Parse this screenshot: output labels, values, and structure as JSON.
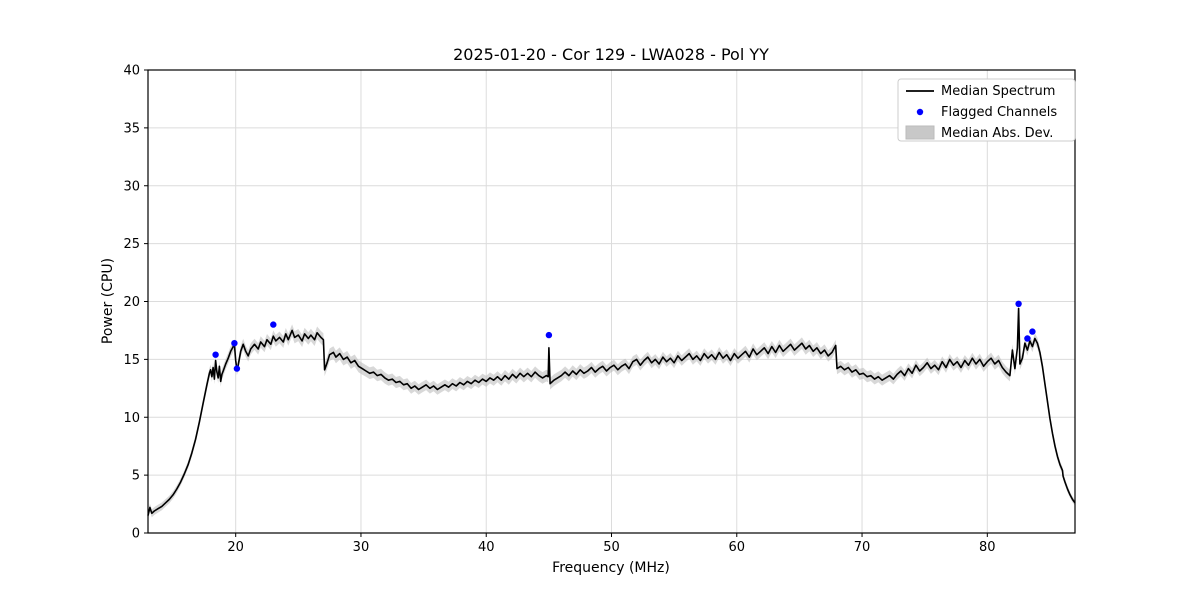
{
  "figure": {
    "title": "2025-01-20 - Cor 129 - LWA028 - Pol YY"
  },
  "chart_data": {
    "type": "line",
    "title": "2025-01-20 - Cor 129 - LWA028 - Pol YY",
    "xlabel": "Frequency (MHz)",
    "ylabel": "Power (CPU)",
    "xlim": [
      13,
      87
    ],
    "ylim": [
      0,
      40
    ],
    "xticks": [
      20,
      30,
      40,
      50,
      60,
      70,
      80
    ],
    "yticks": [
      0,
      5,
      10,
      15,
      20,
      25,
      30,
      35,
      40
    ],
    "grid": true,
    "legend": {
      "position": "upper right",
      "entries": [
        {
          "label": "Median Spectrum",
          "type": "line",
          "color": "#000000"
        },
        {
          "label": "Flagged Channels",
          "type": "marker",
          "color": "#0000ff"
        },
        {
          "label": "Median Abs. Dev.",
          "type": "patch",
          "color": "#c8c8c8"
        }
      ]
    },
    "series": [
      {
        "name": "Median Spectrum",
        "type": "line",
        "color": "#000000",
        "points": [
          [
            13.0,
            1.5
          ],
          [
            13.15,
            2.2
          ],
          [
            13.3,
            1.7
          ],
          [
            13.5,
            1.9
          ],
          [
            13.8,
            2.1
          ],
          [
            14.1,
            2.3
          ],
          [
            14.4,
            2.6
          ],
          [
            14.7,
            2.9
          ],
          [
            15.0,
            3.3
          ],
          [
            15.3,
            3.8
          ],
          [
            15.6,
            4.4
          ],
          [
            15.9,
            5.1
          ],
          [
            16.2,
            5.9
          ],
          [
            16.5,
            6.9
          ],
          [
            16.8,
            8.1
          ],
          [
            17.1,
            9.6
          ],
          [
            17.4,
            11.2
          ],
          [
            17.7,
            12.8
          ],
          [
            17.9,
            13.8
          ],
          [
            18.0,
            14.1
          ],
          [
            18.1,
            13.5
          ],
          [
            18.2,
            14.3
          ],
          [
            18.3,
            13.3
          ],
          [
            18.4,
            14.9
          ],
          [
            18.5,
            13.9
          ],
          [
            18.6,
            13.4
          ],
          [
            18.7,
            14.4
          ],
          [
            18.8,
            13.1
          ],
          [
            18.9,
            13.7
          ],
          [
            19.0,
            14.0
          ],
          [
            19.2,
            14.6
          ],
          [
            19.4,
            15.1
          ],
          [
            19.6,
            15.7
          ],
          [
            19.8,
            16.1
          ],
          [
            19.9,
            16.3
          ],
          [
            20.0,
            14.9
          ],
          [
            20.1,
            14.1
          ],
          [
            20.2,
            14.5
          ],
          [
            20.4,
            15.7
          ],
          [
            20.6,
            16.3
          ],
          [
            20.8,
            15.7
          ],
          [
            21.0,
            15.3
          ],
          [
            21.2,
            15.9
          ],
          [
            21.5,
            16.3
          ],
          [
            21.8,
            15.9
          ],
          [
            22.0,
            16.5
          ],
          [
            22.3,
            16.1
          ],
          [
            22.5,
            16.7
          ],
          [
            22.8,
            16.3
          ],
          [
            23.0,
            17.0
          ],
          [
            23.2,
            16.6
          ],
          [
            23.5,
            16.9
          ],
          [
            23.8,
            16.5
          ],
          [
            24.0,
            17.2
          ],
          [
            24.2,
            16.7
          ],
          [
            24.5,
            17.5
          ],
          [
            24.7,
            16.9
          ],
          [
            25.0,
            17.1
          ],
          [
            25.3,
            16.6
          ],
          [
            25.5,
            17.2
          ],
          [
            25.8,
            16.8
          ],
          [
            26.0,
            17.1
          ],
          [
            26.3,
            16.7
          ],
          [
            26.5,
            17.3
          ],
          [
            26.8,
            16.9
          ],
          [
            27.0,
            16.7
          ],
          [
            27.1,
            14.1
          ],
          [
            27.3,
            14.7
          ],
          [
            27.5,
            15.4
          ],
          [
            27.8,
            15.6
          ],
          [
            28.0,
            15.2
          ],
          [
            28.3,
            15.5
          ],
          [
            28.6,
            15.0
          ],
          [
            28.9,
            15.2
          ],
          [
            29.2,
            14.7
          ],
          [
            29.5,
            14.9
          ],
          [
            29.8,
            14.4
          ],
          [
            30.1,
            14.2
          ],
          [
            30.4,
            14.0
          ],
          [
            30.7,
            13.8
          ],
          [
            31.0,
            13.9
          ],
          [
            31.3,
            13.6
          ],
          [
            31.6,
            13.7
          ],
          [
            31.9,
            13.4
          ],
          [
            32.2,
            13.2
          ],
          [
            32.5,
            13.3
          ],
          [
            32.8,
            13.0
          ],
          [
            33.1,
            13.1
          ],
          [
            33.4,
            12.8
          ],
          [
            33.7,
            12.9
          ],
          [
            34.0,
            12.5
          ],
          [
            34.3,
            12.7
          ],
          [
            34.6,
            12.4
          ],
          [
            34.9,
            12.6
          ],
          [
            35.2,
            12.8
          ],
          [
            35.5,
            12.5
          ],
          [
            35.8,
            12.7
          ],
          [
            36.1,
            12.4
          ],
          [
            36.4,
            12.6
          ],
          [
            36.7,
            12.8
          ],
          [
            37.0,
            12.6
          ],
          [
            37.3,
            12.9
          ],
          [
            37.6,
            12.7
          ],
          [
            37.9,
            13.0
          ],
          [
            38.2,
            12.8
          ],
          [
            38.5,
            13.1
          ],
          [
            38.8,
            12.9
          ],
          [
            39.1,
            13.2
          ],
          [
            39.4,
            13.0
          ],
          [
            39.7,
            13.3
          ],
          [
            40.0,
            13.1
          ],
          [
            40.3,
            13.4
          ],
          [
            40.6,
            13.2
          ],
          [
            40.9,
            13.5
          ],
          [
            41.2,
            13.2
          ],
          [
            41.5,
            13.6
          ],
          [
            41.8,
            13.3
          ],
          [
            42.1,
            13.7
          ],
          [
            42.4,
            13.4
          ],
          [
            42.7,
            13.8
          ],
          [
            43.0,
            13.5
          ],
          [
            43.3,
            13.8
          ],
          [
            43.6,
            13.5
          ],
          [
            43.9,
            13.9
          ],
          [
            44.2,
            13.6
          ],
          [
            44.5,
            13.4
          ],
          [
            44.8,
            13.6
          ],
          [
            44.95,
            13.5
          ],
          [
            45.0,
            16.0
          ],
          [
            45.1,
            12.9
          ],
          [
            45.4,
            13.2
          ],
          [
            45.7,
            13.4
          ],
          [
            46.0,
            13.6
          ],
          [
            46.3,
            13.9
          ],
          [
            46.6,
            13.6
          ],
          [
            46.9,
            14.0
          ],
          [
            47.2,
            13.7
          ],
          [
            47.5,
            14.1
          ],
          [
            47.8,
            13.8
          ],
          [
            48.1,
            14.0
          ],
          [
            48.4,
            14.3
          ],
          [
            48.7,
            13.9
          ],
          [
            49.0,
            14.2
          ],
          [
            49.3,
            14.4
          ],
          [
            49.6,
            14.0
          ],
          [
            49.9,
            14.3
          ],
          [
            50.2,
            14.5
          ],
          [
            50.5,
            14.1
          ],
          [
            50.8,
            14.4
          ],
          [
            51.1,
            14.6
          ],
          [
            51.4,
            14.2
          ],
          [
            51.7,
            14.8
          ],
          [
            52.0,
            15.0
          ],
          [
            52.3,
            14.5
          ],
          [
            52.6,
            14.9
          ],
          [
            52.9,
            15.2
          ],
          [
            53.2,
            14.7
          ],
          [
            53.5,
            15.0
          ],
          [
            53.8,
            14.6
          ],
          [
            54.1,
            15.2
          ],
          [
            54.4,
            14.8
          ],
          [
            54.7,
            15.1
          ],
          [
            55.0,
            14.7
          ],
          [
            55.3,
            15.3
          ],
          [
            55.6,
            14.9
          ],
          [
            55.9,
            15.2
          ],
          [
            56.2,
            15.5
          ],
          [
            56.5,
            15.0
          ],
          [
            56.8,
            15.3
          ],
          [
            57.1,
            14.9
          ],
          [
            57.4,
            15.5
          ],
          [
            57.7,
            15.1
          ],
          [
            58.0,
            15.4
          ],
          [
            58.3,
            15.0
          ],
          [
            58.6,
            15.6
          ],
          [
            58.9,
            15.1
          ],
          [
            59.2,
            15.4
          ],
          [
            59.5,
            14.9
          ],
          [
            59.8,
            15.5
          ],
          [
            60.1,
            15.1
          ],
          [
            60.4,
            15.4
          ],
          [
            60.7,
            15.7
          ],
          [
            61.0,
            15.2
          ],
          [
            61.3,
            15.9
          ],
          [
            61.6,
            15.4
          ],
          [
            61.9,
            15.7
          ],
          [
            62.2,
            16.0
          ],
          [
            62.5,
            15.5
          ],
          [
            62.8,
            16.1
          ],
          [
            63.1,
            15.6
          ],
          [
            63.4,
            16.2
          ],
          [
            63.7,
            15.7
          ],
          [
            64.0,
            16.0
          ],
          [
            64.3,
            16.3
          ],
          [
            64.6,
            15.8
          ],
          [
            64.9,
            16.1
          ],
          [
            65.2,
            16.4
          ],
          [
            65.5,
            15.9
          ],
          [
            65.8,
            16.2
          ],
          [
            66.1,
            15.7
          ],
          [
            66.4,
            16.0
          ],
          [
            66.7,
            15.5
          ],
          [
            67.0,
            15.8
          ],
          [
            67.3,
            15.3
          ],
          [
            67.6,
            15.6
          ],
          [
            67.9,
            16.2
          ],
          [
            68.0,
            14.2
          ],
          [
            68.3,
            14.4
          ],
          [
            68.6,
            14.1
          ],
          [
            68.9,
            14.3
          ],
          [
            69.2,
            13.9
          ],
          [
            69.5,
            14.1
          ],
          [
            69.8,
            13.7
          ],
          [
            70.1,
            13.8
          ],
          [
            70.4,
            13.5
          ],
          [
            70.7,
            13.6
          ],
          [
            71.0,
            13.3
          ],
          [
            71.3,
            13.5
          ],
          [
            71.6,
            13.2
          ],
          [
            71.9,
            13.4
          ],
          [
            72.2,
            13.6
          ],
          [
            72.5,
            13.3
          ],
          [
            72.8,
            13.7
          ],
          [
            73.1,
            14.0
          ],
          [
            73.4,
            13.6
          ],
          [
            73.7,
            14.2
          ],
          [
            74.0,
            13.8
          ],
          [
            74.3,
            14.5
          ],
          [
            74.6,
            14.0
          ],
          [
            74.9,
            14.3
          ],
          [
            75.2,
            14.7
          ],
          [
            75.5,
            14.2
          ],
          [
            75.8,
            14.5
          ],
          [
            76.1,
            14.1
          ],
          [
            76.4,
            14.8
          ],
          [
            76.7,
            14.3
          ],
          [
            77.0,
            15.0
          ],
          [
            77.3,
            14.5
          ],
          [
            77.6,
            14.8
          ],
          [
            77.9,
            14.3
          ],
          [
            78.2,
            14.9
          ],
          [
            78.5,
            14.5
          ],
          [
            78.8,
            15.1
          ],
          [
            79.1,
            14.6
          ],
          [
            79.4,
            15.0
          ],
          [
            79.7,
            14.4
          ],
          [
            80.0,
            14.8
          ],
          [
            80.3,
            15.1
          ],
          [
            80.6,
            14.6
          ],
          [
            80.9,
            14.9
          ],
          [
            81.2,
            14.3
          ],
          [
            81.5,
            13.9
          ],
          [
            81.8,
            13.6
          ],
          [
            82.0,
            15.8
          ],
          [
            82.2,
            14.2
          ],
          [
            82.4,
            16.0
          ],
          [
            82.5,
            19.4
          ],
          [
            82.6,
            14.6
          ],
          [
            82.8,
            15.1
          ],
          [
            83.0,
            16.4
          ],
          [
            83.2,
            15.8
          ],
          [
            83.4,
            16.6
          ],
          [
            83.6,
            16.1
          ],
          [
            83.8,
            16.8
          ],
          [
            84.0,
            16.4
          ],
          [
            84.2,
            15.6
          ],
          [
            84.4,
            14.4
          ],
          [
            84.6,
            12.9
          ],
          [
            84.8,
            11.4
          ],
          [
            85.0,
            9.9
          ],
          [
            85.2,
            8.6
          ],
          [
            85.4,
            7.5
          ],
          [
            85.6,
            6.6
          ],
          [
            85.8,
            5.9
          ],
          [
            86.0,
            5.4
          ],
          [
            86.05,
            4.9
          ],
          [
            86.2,
            4.4
          ],
          [
            86.4,
            3.8
          ],
          [
            86.6,
            3.3
          ],
          [
            86.8,
            2.9
          ],
          [
            87.0,
            2.6
          ]
        ]
      },
      {
        "name": "Flagged Channels",
        "type": "scatter",
        "color": "#0000ff",
        "points": [
          [
            18.4,
            15.4
          ],
          [
            19.9,
            16.4
          ],
          [
            20.1,
            14.2
          ],
          [
            23.0,
            18.0
          ],
          [
            45.0,
            17.1
          ],
          [
            82.5,
            19.8
          ],
          [
            83.2,
            16.8
          ],
          [
            83.6,
            17.4
          ]
        ]
      },
      {
        "name": "Median Abs. Dev.",
        "type": "band",
        "color": "#c8c8c8",
        "mad_breakpoints": [
          [
            13,
            0.35
          ],
          [
            16,
            0.3
          ],
          [
            18,
            0.45
          ],
          [
            23,
            0.5
          ],
          [
            27,
            0.55
          ],
          [
            35,
            0.45
          ],
          [
            45,
            0.5
          ],
          [
            55,
            0.45
          ],
          [
            65,
            0.5
          ],
          [
            75,
            0.45
          ],
          [
            82,
            0.5
          ],
          [
            84.5,
            0.45
          ],
          [
            86,
            0.3
          ],
          [
            87,
            0.25
          ]
        ]
      }
    ]
  }
}
